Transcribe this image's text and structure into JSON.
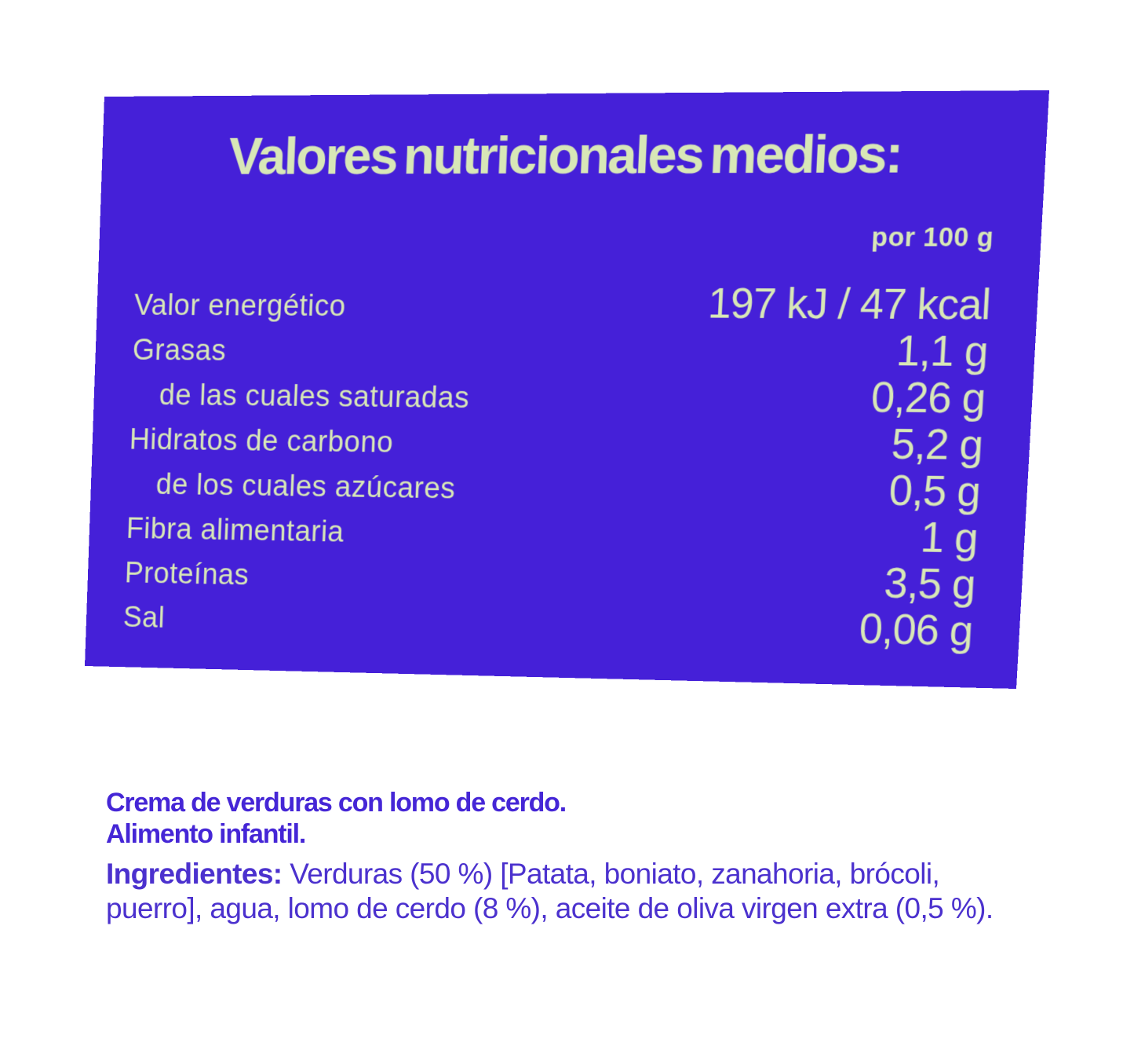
{
  "nutrition_panel": {
    "title": "Valores nutricionales medios:",
    "per_header": "por 100 g",
    "rows": [
      {
        "label": "Valor energético",
        "value": "197 kJ / 47 kcal",
        "indent": false
      },
      {
        "label": "Grasas",
        "value": "1,1 g",
        "indent": false
      },
      {
        "label": "de las cuales saturadas",
        "value": "0,26 g",
        "indent": true
      },
      {
        "label": "Hidratos de carbono",
        "value": "5,2 g",
        "indent": false
      },
      {
        "label": "de los cuales azúcares",
        "value": "0,5 g",
        "indent": true
      },
      {
        "label": "Fibra alimentaria",
        "value": "1 g",
        "indent": false
      },
      {
        "label": "Proteínas",
        "value": "3,5 g",
        "indent": false
      },
      {
        "label": "Sal",
        "value": "0,06 g",
        "indent": false
      }
    ],
    "colors": {
      "panel_bg": "#4520D8",
      "panel_text": "#D8E7B7"
    }
  },
  "product_info": {
    "heading_line1": "Crema de verduras con lomo de cerdo.",
    "heading_line2": "Alimento infantil.",
    "ingredients_label": "Ingredientes:",
    "ingredients_text": " Verduras (50 %) [Patata, boniato, zanahoria, brócoli, puerro], agua, lomo de cerdo (8 %), aceite de oliva virgen extra (0,5 %).",
    "colors": {
      "heading": "#4526D6",
      "text": "#4B31CE"
    }
  }
}
